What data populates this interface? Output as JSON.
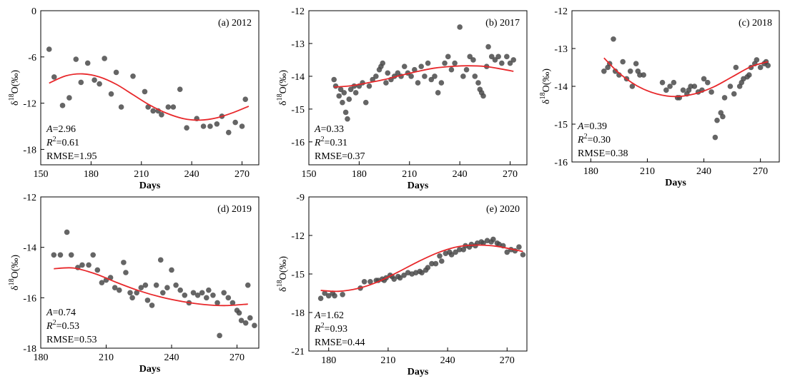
{
  "chart_data": [
    {
      "type": "scatter",
      "panel_label": "(a) 2012",
      "xlabel": "Days",
      "ylabel": "δ18O(‰)",
      "xlim": [
        150,
        280
      ],
      "ylim": [
        -20,
        0
      ],
      "xticks": [
        150,
        180,
        210,
        240,
        270
      ],
      "yticks": [
        0,
        -6,
        -12,
        -18
      ],
      "A_label": "A",
      "A_value": "=2.96",
      "R2_label": "R",
      "R2_value": "=0.61",
      "rmse_label": "RMSE",
      "rmse_value": "=1.95",
      "points": [
        [
          155,
          -5
        ],
        [
          158,
          -8.6
        ],
        [
          163,
          -12.3
        ],
        [
          167,
          -11.3
        ],
        [
          171,
          -6.3
        ],
        [
          174,
          -9.3
        ],
        [
          178,
          -6.8
        ],
        [
          182,
          -9
        ],
        [
          185,
          -9.5
        ],
        [
          188,
          -6.2
        ],
        [
          192,
          -10.8
        ],
        [
          195,
          -8
        ],
        [
          198,
          -12.5
        ],
        [
          205,
          -8.5
        ],
        [
          212,
          -10.5
        ],
        [
          214,
          -12.5
        ],
        [
          217,
          -13
        ],
        [
          220,
          -13
        ],
        [
          222,
          -13.5
        ],
        [
          226,
          -12.5
        ],
        [
          229,
          -12.5
        ],
        [
          233,
          -10.2
        ],
        [
          237,
          -15.2
        ],
        [
          243,
          -14
        ],
        [
          247,
          -15
        ],
        [
          251,
          -15
        ],
        [
          255,
          -14.7
        ],
        [
          258,
          -13.7
        ],
        [
          262,
          -15.8
        ],
        [
          266,
          -14.5
        ],
        [
          270,
          -15
        ],
        [
          272,
          -11.5
        ]
      ],
      "fit": [
        [
          155,
          -9.4
        ],
        [
          165,
          -8.45
        ],
        [
          175,
          -8.2
        ],
        [
          185,
          -8.6
        ],
        [
          195,
          -9.55
        ],
        [
          205,
          -10.9
        ],
        [
          215,
          -12.25
        ],
        [
          225,
          -13.3
        ],
        [
          235,
          -14
        ],
        [
          245,
          -14.2
        ],
        [
          255,
          -13.9
        ],
        [
          265,
          -13.2
        ],
        [
          274,
          -12.4
        ]
      ]
    },
    {
      "type": "scatter",
      "panel_label": "(b) 2017",
      "xlabel": "Days",
      "ylabel": "δ18O(‰)",
      "xlim": [
        150,
        280
      ],
      "ylim": [
        -16.7,
        -12
      ],
      "xticks": [
        150,
        180,
        210,
        240,
        270
      ],
      "yticks": [
        -12,
        -13,
        -14,
        -15,
        -16
      ],
      "A_label": "A",
      "A_value": "=0.33",
      "R2_label": "R",
      "R2_value": "=0.31",
      "rmse_label": "RMSE",
      "rmse_value": "=0.37",
      "points": [
        [
          165,
          -14.1
        ],
        [
          166,
          -14.3
        ],
        [
          168,
          -14.6
        ],
        [
          169,
          -14.4
        ],
        [
          170,
          -14.8
        ],
        [
          171,
          -14.5
        ],
        [
          172,
          -15.1
        ],
        [
          173,
          -15.3
        ],
        [
          174,
          -14.7
        ],
        [
          175,
          -14.4
        ],
        [
          177,
          -14.3
        ],
        [
          178,
          -14.5
        ],
        [
          180,
          -14.3
        ],
        [
          182,
          -14.2
        ],
        [
          184,
          -14.8
        ],
        [
          186,
          -14.3
        ],
        [
          188,
          -14.1
        ],
        [
          190,
          -14
        ],
        [
          192,
          -13.8
        ],
        [
          193,
          -13.7
        ],
        [
          194,
          -13.6
        ],
        [
          196,
          -14.2
        ],
        [
          197,
          -13.9
        ],
        [
          199,
          -14.1
        ],
        [
          201,
          -14
        ],
        [
          203,
          -13.9
        ],
        [
          205,
          -14
        ],
        [
          207,
          -13.7
        ],
        [
          209,
          -13.9
        ],
        [
          211,
          -14
        ],
        [
          213,
          -13.8
        ],
        [
          215,
          -14.2
        ],
        [
          217,
          -13.7
        ],
        [
          219,
          -14
        ],
        [
          221,
          -13.6
        ],
        [
          223,
          -14.1
        ],
        [
          225,
          -14
        ],
        [
          227,
          -14.5
        ],
        [
          229,
          -14.2
        ],
        [
          231,
          -13.6
        ],
        [
          233,
          -13.4
        ],
        [
          235,
          -13.8
        ],
        [
          237,
          -13.6
        ],
        [
          240,
          -12.5
        ],
        [
          242,
          -14
        ],
        [
          244,
          -13.8
        ],
        [
          246,
          -13.4
        ],
        [
          248,
          -13.5
        ],
        [
          249,
          -14
        ],
        [
          251,
          -14.2
        ],
        [
          252,
          -14.4
        ],
        [
          253,
          -14.5
        ],
        [
          254,
          -14.6
        ],
        [
          256,
          -13.7
        ],
        [
          257,
          -13.1
        ],
        [
          259,
          -13.4
        ],
        [
          261,
          -13.5
        ],
        [
          263,
          -13.4
        ],
        [
          265,
          -13.6
        ],
        [
          268,
          -13.4
        ],
        [
          270,
          -13.6
        ],
        [
          272,
          -13.5
        ]
      ],
      "fit": [
        [
          165,
          -14.33
        ],
        [
          175,
          -14.29
        ],
        [
          185,
          -14.2
        ],
        [
          195,
          -14.1
        ],
        [
          205,
          -13.97
        ],
        [
          215,
          -13.85
        ],
        [
          225,
          -13.75
        ],
        [
          235,
          -13.7
        ],
        [
          245,
          -13.68
        ],
        [
          255,
          -13.7
        ],
        [
          265,
          -13.78
        ],
        [
          272,
          -13.85
        ]
      ]
    },
    {
      "type": "scatter",
      "panel_label": "(c) 2018",
      "xlabel": "Days",
      "ylabel": "δ18O(‰)",
      "xlim": [
        170,
        280
      ],
      "ylim": [
        -16,
        -12
      ],
      "xticks": [
        180,
        210,
        240,
        270
      ],
      "yticks": [
        -12,
        -13,
        -14,
        -15,
        -16
      ],
      "A_label": "A",
      "A_value": "=0.39",
      "R2_label": "R",
      "R2_value": "=0.30",
      "rmse_label": "RMSE",
      "rmse_value": "=0.38",
      "points": [
        [
          187,
          -13.6
        ],
        [
          189,
          -13.5
        ],
        [
          190,
          -13.4
        ],
        [
          192,
          -12.75
        ],
        [
          193,
          -13.6
        ],
        [
          195,
          -13.7
        ],
        [
          197,
          -13.35
        ],
        [
          199,
          -13.8
        ],
        [
          201,
          -13.6
        ],
        [
          202,
          -14
        ],
        [
          204,
          -13.4
        ],
        [
          205,
          -13.6
        ],
        [
          206,
          -13.7
        ],
        [
          208,
          -13.7
        ],
        [
          218,
          -13.9
        ],
        [
          220,
          -14.1
        ],
        [
          222,
          -14
        ],
        [
          224,
          -13.9
        ],
        [
          226,
          -14.3
        ],
        [
          227,
          -14.3
        ],
        [
          229,
          -14.1
        ],
        [
          231,
          -14.2
        ],
        [
          232,
          -14.1
        ],
        [
          233,
          -14
        ],
        [
          235,
          -14
        ],
        [
          237,
          -14.15
        ],
        [
          239,
          -14.1
        ],
        [
          240,
          -13.8
        ],
        [
          242,
          -13.9
        ],
        [
          244,
          -14.15
        ],
        [
          246,
          -15.35
        ],
        [
          247,
          -14.9
        ],
        [
          249,
          -14.7
        ],
        [
          250,
          -14.8
        ],
        [
          251,
          -14.3
        ],
        [
          254,
          -14
        ],
        [
          256,
          -14.2
        ],
        [
          257,
          -13.5
        ],
        [
          259,
          -14
        ],
        [
          260,
          -13.9
        ],
        [
          261,
          -13.8
        ],
        [
          263,
          -13.75
        ],
        [
          264,
          -13.7
        ],
        [
          265,
          -13.5
        ],
        [
          267,
          -13.4
        ],
        [
          268,
          -13.3
        ],
        [
          270,
          -13.5
        ],
        [
          272,
          -13.4
        ],
        [
          273,
          -13.35
        ],
        [
          274,
          -13.45
        ]
      ],
      "fit": [
        [
          187,
          -13.25
        ],
        [
          195,
          -13.65
        ],
        [
          205,
          -14
        ],
        [
          215,
          -14.2
        ],
        [
          225,
          -14.27
        ],
        [
          235,
          -14.2
        ],
        [
          245,
          -14.02
        ],
        [
          255,
          -13.75
        ],
        [
          265,
          -13.48
        ],
        [
          274,
          -13.35
        ]
      ]
    },
    {
      "type": "scatter",
      "panel_label": "(d) 2019",
      "xlabel": "Days",
      "ylabel": "δ18O(‰)",
      "xlim": [
        180,
        280
      ],
      "ylim": [
        -18,
        -12
      ],
      "xticks": [
        180,
        210,
        240,
        270
      ],
      "yticks": [
        -12,
        -14,
        -16,
        -18
      ],
      "A_label": "A",
      "A_value": "=0.74",
      "R2_label": "R",
      "R2_value": "=0.53",
      "rmse_label": "RMSE",
      "rmse_value": "=0.53",
      "points": [
        [
          186,
          -14.3
        ],
        [
          189,
          -14.3
        ],
        [
          192,
          -13.4
        ],
        [
          194,
          -14.3
        ],
        [
          197,
          -14.8
        ],
        [
          199,
          -14.7
        ],
        [
          202,
          -14.7
        ],
        [
          204,
          -14.3
        ],
        [
          206,
          -14.9
        ],
        [
          208,
          -15.4
        ],
        [
          210,
          -15.3
        ],
        [
          212,
          -15.2
        ],
        [
          214,
          -15.6
        ],
        [
          216,
          -15.7
        ],
        [
          218,
          -14.6
        ],
        [
          219,
          -15
        ],
        [
          221,
          -15.8
        ],
        [
          222,
          -16
        ],
        [
          224,
          -15.8
        ],
        [
          226,
          -15.6
        ],
        [
          228,
          -15.5
        ],
        [
          229,
          -16.1
        ],
        [
          231,
          -16.3
        ],
        [
          233,
          -15.5
        ],
        [
          235,
          -14.5
        ],
        [
          236,
          -15.8
        ],
        [
          238,
          -15.6
        ],
        [
          240,
          -14.9
        ],
        [
          242,
          -15.5
        ],
        [
          244,
          -15.7
        ],
        [
          246,
          -15.9
        ],
        [
          248,
          -16.2
        ],
        [
          250,
          -15.8
        ],
        [
          252,
          -15.9
        ],
        [
          254,
          -15.8
        ],
        [
          256,
          -16
        ],
        [
          257,
          -15.7
        ],
        [
          259,
          -15.9
        ],
        [
          261,
          -16.2
        ],
        [
          262,
          -17.5
        ],
        [
          264,
          -15.8
        ],
        [
          266,
          -16
        ],
        [
          268,
          -16.2
        ],
        [
          270,
          -16.5
        ],
        [
          271,
          -16.6
        ],
        [
          272,
          -16.9
        ],
        [
          274,
          -17
        ],
        [
          275,
          -15.5
        ],
        [
          276,
          -16.8
        ],
        [
          278,
          -17.1
        ]
      ],
      "fit": [
        [
          186,
          -14.85
        ],
        [
          195,
          -14.82
        ],
        [
          205,
          -15.05
        ],
        [
          215,
          -15.4
        ],
        [
          225,
          -15.72
        ],
        [
          235,
          -15.97
        ],
        [
          245,
          -16.15
        ],
        [
          255,
          -16.27
        ],
        [
          265,
          -16.31
        ],
        [
          275,
          -16.25
        ]
      ]
    },
    {
      "type": "scatter",
      "panel_label": "(e) 2020",
      "xlabel": "Days",
      "ylabel": "δ18O(‰)",
      "xlim": [
        170,
        280
      ],
      "ylim": [
        -21,
        -9
      ],
      "xticks": [
        180,
        210,
        240,
        270
      ],
      "yticks": [
        -9,
        -12,
        -15,
        -18,
        -21
      ],
      "A_label": "A",
      "A_value": "=1.62",
      "R2_label": "R",
      "R2_value": "=0.93",
      "rmse_label": "RMSE",
      "rmse_value": "=0.44",
      "points": [
        [
          176,
          -16.9
        ],
        [
          178,
          -16.5
        ],
        [
          180,
          -16.7
        ],
        [
          182,
          -16.5
        ],
        [
          183,
          -16.7
        ],
        [
          187,
          -16.6
        ],
        [
          196,
          -16.1
        ],
        [
          198,
          -15.6
        ],
        [
          201,
          -15.6
        ],
        [
          204,
          -15.5
        ],
        [
          205,
          -15.5
        ],
        [
          207,
          -15.4
        ],
        [
          208,
          -15.5
        ],
        [
          209,
          -15.3
        ],
        [
          211,
          -15.1
        ],
        [
          212,
          -15.2
        ],
        [
          213,
          -15.4
        ],
        [
          215,
          -15.2
        ],
        [
          216,
          -15.3
        ],
        [
          218,
          -15.1
        ],
        [
          220,
          -14.9
        ],
        [
          222,
          -15
        ],
        [
          224,
          -14.9
        ],
        [
          226,
          -14.8
        ],
        [
          227,
          -14.9
        ],
        [
          229,
          -14.7
        ],
        [
          230,
          -14.5
        ],
        [
          232,
          -14.2
        ],
        [
          234,
          -14.2
        ],
        [
          236,
          -13.6
        ],
        [
          237,
          -14
        ],
        [
          239,
          -13.4
        ],
        [
          241,
          -13.3
        ],
        [
          242,
          -13.5
        ],
        [
          244,
          -13.3
        ],
        [
          246,
          -13.1
        ],
        [
          248,
          -13.1
        ],
        [
          249,
          -12.8
        ],
        [
          251,
          -12.9
        ],
        [
          252,
          -12.7
        ],
        [
          254,
          -12.8
        ],
        [
          255,
          -12.6
        ],
        [
          257,
          -12.5
        ],
        [
          258,
          -12.6
        ],
        [
          260,
          -12.4
        ],
        [
          262,
          -12.5
        ],
        [
          263,
          -12.3
        ],
        [
          265,
          -12.6
        ],
        [
          266,
          -12.7
        ],
        [
          268,
          -12.8
        ],
        [
          270,
          -13.3
        ],
        [
          272,
          -13.1
        ],
        [
          274,
          -13.2
        ],
        [
          276,
          -12.9
        ],
        [
          278,
          -13.5
        ]
      ],
      "fit": [
        [
          176,
          -16.28
        ],
        [
          185,
          -16.35
        ],
        [
          195,
          -16.12
        ],
        [
          205,
          -15.6
        ],
        [
          215,
          -14.85
        ],
        [
          225,
          -14.05
        ],
        [
          235,
          -13.35
        ],
        [
          245,
          -12.88
        ],
        [
          255,
          -12.75
        ],
        [
          265,
          -12.85
        ],
        [
          278,
          -13.25
        ]
      ]
    }
  ],
  "colors": {
    "fit_line": "#e8282b",
    "points": "#4a4a4a"
  }
}
